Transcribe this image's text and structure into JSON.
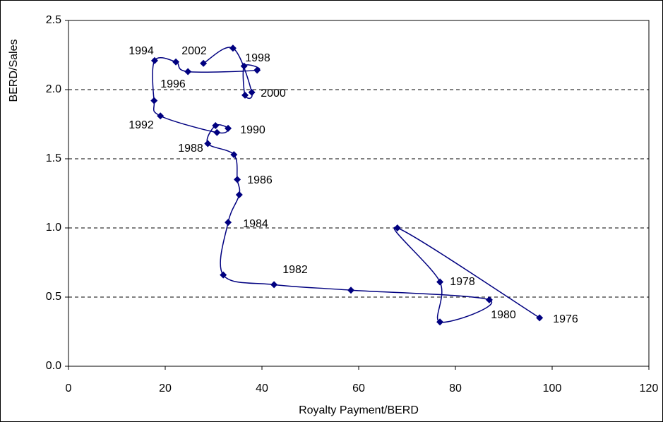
{
  "chart_data": {
    "type": "scatter",
    "x_label": "Royalty Payment/BERD",
    "y_label": "BERD/Sales",
    "xlim": [
      0,
      120
    ],
    "ylim": [
      0,
      2.5
    ],
    "xticks": [
      0,
      20,
      40,
      60,
      80,
      100,
      120
    ],
    "yticks": [
      {
        "value": 0,
        "label": "0.0"
      },
      0.5,
      {
        "value": 1,
        "label": "1.0"
      },
      1.5,
      {
        "value": 2,
        "label": "2.0"
      },
      2.5
    ],
    "grid": true,
    "series": [
      {
        "color": "#000080",
        "x": [
          97.4,
          68.0,
          76.8,
          76.8,
          87.0,
          58.4,
          42.5,
          32.0,
          33.0,
          35.3,
          34.9,
          34.2,
          28.8,
          30.4,
          33.0,
          30.7,
          19.0,
          17.7,
          17.8,
          22.2,
          24.7,
          39.0,
          36.3,
          36.5,
          37.9,
          34.0,
          27.9
        ],
        "values": [
          0.35,
          1.0,
          0.61,
          0.32,
          0.48,
          0.55,
          0.59,
          0.66,
          1.04,
          1.24,
          1.35,
          1.53,
          1.61,
          1.74,
          1.72,
          1.69,
          1.81,
          1.92,
          2.21,
          2.2,
          2.13,
          2.14,
          2.17,
          1.96,
          1.98,
          2.3,
          2.19
        ]
      }
    ],
    "annotations": [
      "1994",
      "2002",
      "1998",
      "1996",
      "2000",
      "1990",
      "1992",
      "1988",
      "1986",
      "1984",
      "1982",
      "1978",
      "1980",
      "1976"
    ]
  }
}
